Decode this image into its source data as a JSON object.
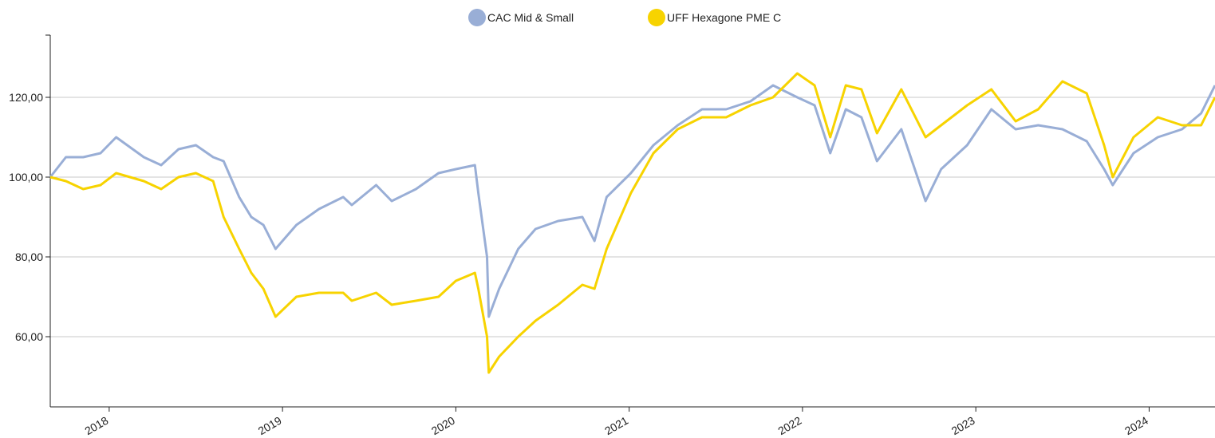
{
  "chart_data": {
    "type": "line",
    "x": [
      2017.66,
      2017.75,
      2017.85,
      2017.95,
      2018.04,
      2018.2,
      2018.3,
      2018.4,
      2018.5,
      2018.6,
      2018.66,
      2018.75,
      2018.82,
      2018.89,
      2018.96,
      2019.08,
      2019.21,
      2019.35,
      2019.4,
      2019.54,
      2019.63,
      2019.77,
      2019.9,
      2020.0,
      2020.11,
      2020.13,
      2020.18,
      2020.19,
      2020.25,
      2020.36,
      2020.46,
      2020.59,
      2020.73,
      2020.8,
      2020.87,
      2021.01,
      2021.14,
      2021.28,
      2021.42,
      2021.56,
      2021.7,
      2021.83,
      2021.97,
      2022.07,
      2022.16,
      2022.25,
      2022.34,
      2022.43,
      2022.57,
      2022.71,
      2022.8,
      2022.95,
      2023.09,
      2023.23,
      2023.36,
      2023.5,
      2023.64,
      2023.74,
      2023.79,
      2023.91,
      2024.05,
      2024.19,
      2024.3,
      2024.38
    ],
    "series": [
      {
        "name": "CAC Mid & Small",
        "color": "#99aed6",
        "values": [
          100,
          105,
          105,
          106,
          110,
          105,
          103,
          107,
          108,
          105,
          104,
          95,
          90,
          88,
          82,
          88,
          92,
          95,
          93,
          98,
          94,
          97,
          101,
          102,
          103,
          96,
          80,
          65,
          72,
          82,
          87,
          89,
          90,
          84,
          95,
          101,
          108,
          113,
          117,
          117,
          119,
          123,
          120,
          118,
          106,
          117,
          115,
          104,
          112,
          94,
          102,
          108,
          117,
          112,
          113,
          112,
          109,
          102,
          98,
          106,
          110,
          112,
          116,
          123
        ]
      },
      {
        "name": "UFF Hexagone PME C",
        "color": "#f7d300",
        "values": [
          100,
          99,
          97,
          98,
          101,
          99,
          97,
          100,
          101,
          99,
          90,
          82,
          76,
          72,
          65,
          70,
          71,
          71,
          69,
          71,
          68,
          69,
          70,
          74,
          76,
          72,
          60,
          51,
          55,
          60,
          64,
          68,
          73,
          72,
          82,
          96,
          106,
          112,
          115,
          115,
          118,
          120,
          126,
          123,
          110,
          123,
          122,
          111,
          122,
          110,
          113,
          118,
          122,
          114,
          117,
          124,
          121,
          108,
          100,
          110,
          115,
          113,
          113,
          120
        ]
      }
    ],
    "xlim": [
      2017.66,
      2024.38
    ],
    "xticks": [
      2018,
      2019,
      2020,
      2021,
      2022,
      2023,
      2024
    ],
    "ylim": [
      42.4,
      135.6
    ],
    "yticks": [
      {
        "value": 60,
        "label": "60,00"
      },
      {
        "value": 80,
        "label": "80,00"
      },
      {
        "value": 100,
        "label": "100,00"
      },
      {
        "value": 120,
        "label": "120,00"
      }
    ],
    "grid": true
  }
}
